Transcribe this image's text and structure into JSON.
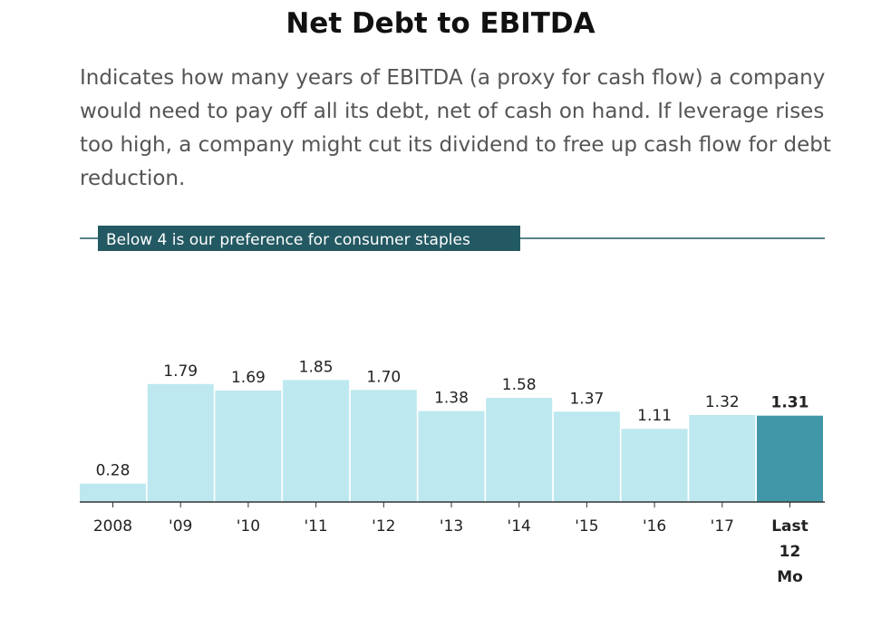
{
  "title": "Net Debt to EBITDA",
  "subtitle": "Indicates how many years of EBITDA (a proxy for cash flow) a company would need to pay off all its debt, net of cash on hand. If leverage rises too high, a company might cut its dividend to free up cash flow for debt reduction.",
  "colors": {
    "bar": "#bde8ef",
    "highlight": "#4197a8",
    "reference": "#235963",
    "axis": "#333333"
  },
  "chart_data": {
    "type": "bar",
    "categories": [
      "2008",
      "'09",
      "'10",
      "'11",
      "'12",
      "'13",
      "'14",
      "'15",
      "'16",
      "'17",
      "Last 12 Mo"
    ],
    "values": [
      0.28,
      1.79,
      1.69,
      1.85,
      1.7,
      1.38,
      1.58,
      1.37,
      1.11,
      1.32,
      1.31
    ],
    "value_labels": [
      "0.28",
      "1.79",
      "1.69",
      "1.85",
      "1.70",
      "1.38",
      "1.58",
      "1.37",
      "1.11",
      "1.32",
      "1.31"
    ],
    "highlight_index": 10,
    "ylim": [
      0,
      4
    ],
    "reference_line": {
      "value": 4,
      "label": "Below 4 is our preference for consumer staples"
    },
    "xlabel": "",
    "ylabel": "",
    "grid": false,
    "legend": "none"
  }
}
